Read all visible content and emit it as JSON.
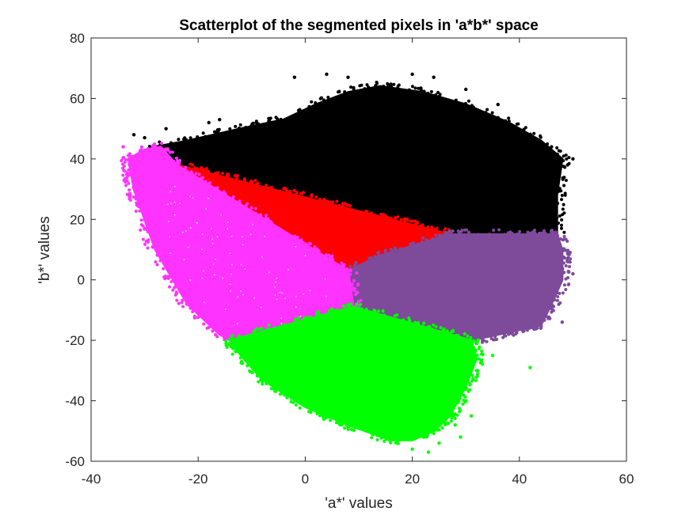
{
  "chart_data": {
    "type": "scatter",
    "title": "Scatterplot of the segmented pixels in 'a*b*' space",
    "xlabel": "'a*' values",
    "ylabel": "'b*' values",
    "xlim": [
      -40,
      60
    ],
    "ylim": [
      -60,
      80
    ],
    "xticks": [
      -40,
      -20,
      0,
      20,
      40,
      60
    ],
    "yticks": [
      -60,
      -40,
      -20,
      0,
      20,
      40,
      60,
      80
    ],
    "grid": false,
    "legend": "none",
    "series": [
      {
        "color": "#000000",
        "region": [
          [
            -28,
            44
          ],
          [
            -22,
            46
          ],
          [
            -12,
            50
          ],
          [
            -4,
            53
          ],
          [
            2,
            58
          ],
          [
            8,
            62
          ],
          [
            14,
            64
          ],
          [
            22,
            62
          ],
          [
            30,
            58
          ],
          [
            38,
            52
          ],
          [
            44,
            46
          ],
          [
            48,
            40
          ],
          [
            47,
            28
          ],
          [
            47,
            15
          ],
          [
            27,
            15
          ],
          [
            -24,
            38
          ]
        ],
        "outliers": [
          [
            -32,
            48
          ],
          [
            -30,
            47
          ],
          [
            -26,
            50
          ],
          [
            -18,
            52
          ],
          [
            -2,
            67
          ],
          [
            4,
            68
          ],
          [
            8,
            67
          ],
          [
            20,
            68
          ],
          [
            24,
            67
          ],
          [
            30,
            63
          ],
          [
            36,
            58
          ],
          [
            46,
            44
          ],
          [
            50,
            40
          ],
          [
            49,
            38
          ],
          [
            -16,
            53
          ]
        ]
      },
      {
        "color": "#ff0000",
        "region": [
          [
            -24,
            38
          ],
          [
            27,
            15
          ],
          [
            14,
            8
          ],
          [
            8,
            3
          ]
        ],
        "outliers": []
      },
      {
        "color": "#7e4a9a",
        "region": [
          [
            8,
            3
          ],
          [
            14,
            8
          ],
          [
            27,
            15
          ],
          [
            47,
            15
          ],
          [
            48,
            10
          ],
          [
            48,
            0
          ],
          [
            46,
            -8
          ],
          [
            44,
            -15
          ],
          [
            31,
            -20
          ],
          [
            9,
            -9
          ]
        ],
        "outliers": [
          [
            50,
            2
          ],
          [
            49,
            6
          ],
          [
            48,
            -14
          ],
          [
            45,
            -12
          ],
          [
            44,
            -16
          ],
          [
            38,
            -18
          ]
        ]
      },
      {
        "color": "#ff33ff",
        "region": [
          [
            -33,
            40
          ],
          [
            -30,
            43
          ],
          [
            -27,
            44
          ],
          [
            -24,
            38
          ],
          [
            8,
            3
          ],
          [
            9,
            -9
          ],
          [
            -14,
            -20
          ],
          [
            -16,
            -18
          ],
          [
            -22,
            -8
          ],
          [
            -28,
            10
          ],
          [
            -32,
            30
          ]
        ],
        "outliers": [
          [
            -34,
            44
          ],
          [
            -33,
            35
          ],
          [
            -30,
            20
          ],
          [
            -25,
            2
          ],
          [
            -22,
            -8
          ],
          [
            -17,
            -14
          ]
        ]
      },
      {
        "color": "#00ff00",
        "region": [
          [
            -14,
            -20
          ],
          [
            9,
            -9
          ],
          [
            31,
            -20
          ],
          [
            32,
            -26
          ],
          [
            30,
            -35
          ],
          [
            27,
            -45
          ],
          [
            24,
            -50
          ],
          [
            20,
            -53
          ],
          [
            16,
            -53
          ],
          [
            8,
            -48
          ],
          [
            0,
            -42
          ],
          [
            -8,
            -33
          ],
          [
            -12,
            -25
          ]
        ],
        "outliers": [
          [
            30,
            -40
          ],
          [
            31,
            -45
          ],
          [
            32,
            -30
          ],
          [
            35,
            -25
          ],
          [
            42,
            -29
          ],
          [
            23,
            -57
          ],
          [
            20,
            -56
          ],
          [
            28,
            -48
          ],
          [
            29,
            -52
          ],
          [
            25,
            -54
          ],
          [
            -6,
            -36
          ]
        ]
      }
    ]
  }
}
